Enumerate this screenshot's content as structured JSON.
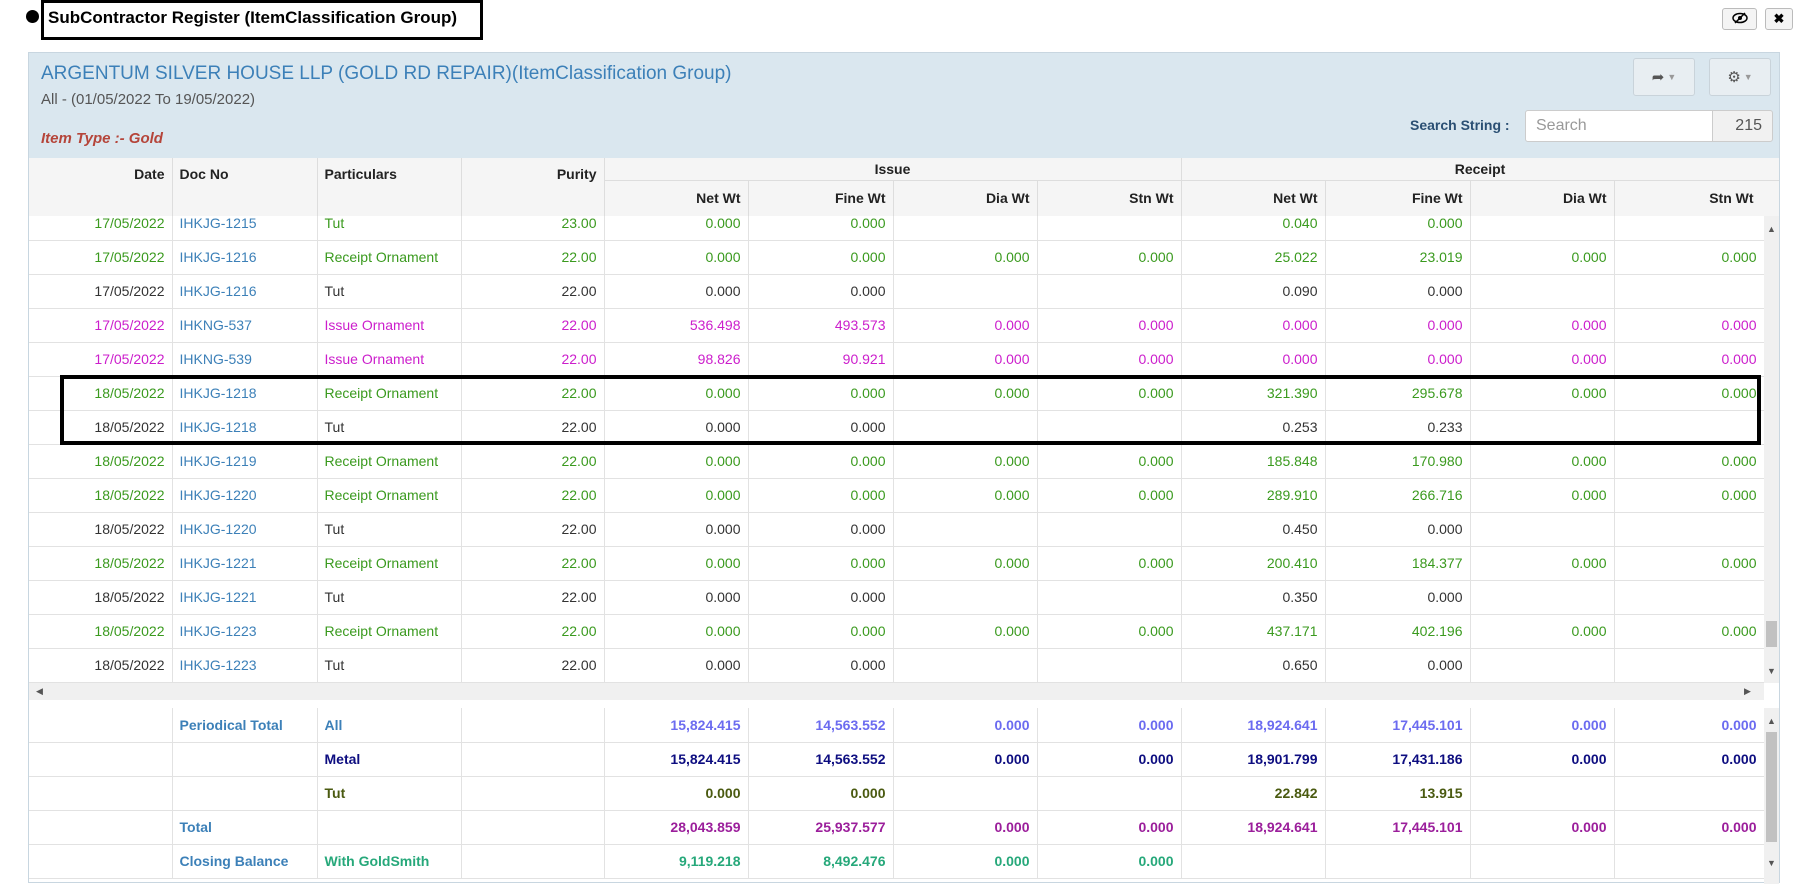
{
  "window": {
    "title": "SubContractor Register (ItemClassification Group)",
    "icons": [
      "eye-slash-icon",
      "close-icon"
    ]
  },
  "header": {
    "company": "ARGENTUM SILVER HOUSE LLP (GOLD RD REPAIR)(ItemClassification Group)",
    "period": "All - (01/05/2022 To 19/05/2022)",
    "item_type": "Item Type :- Gold",
    "search_label": "Search String :",
    "search_placeholder": "Search",
    "search_value": "",
    "count": "215"
  },
  "columns": {
    "date": "Date",
    "doc_no": "Doc No",
    "particulars": "Particulars",
    "purity": "Purity",
    "issue_group": "Issue",
    "receipt_group": "Receipt",
    "net_wt": "Net Wt",
    "fine_wt": "Fine Wt",
    "dia_wt": "Dia Wt",
    "stn_wt": "Stn Wt"
  },
  "rows": [
    {
      "date": "17/05/2022",
      "doc": "IHKJG-1215",
      "part": "Tut",
      "purity": "23.00",
      "i_net": "0.000",
      "i_fine": "0.000",
      "i_dia": "",
      "i_stn": "",
      "r_net": "0.040",
      "r_fine": "0.000",
      "r_dia": "",
      "r_stn": "",
      "color": "green"
    },
    {
      "date": "17/05/2022",
      "doc": "IHKJG-1216",
      "part": "Receipt Ornament",
      "purity": "22.00",
      "i_net": "0.000",
      "i_fine": "0.000",
      "i_dia": "0.000",
      "i_stn": "0.000",
      "r_net": "25.022",
      "r_fine": "23.019",
      "r_dia": "0.000",
      "r_stn": "0.000",
      "color": "green"
    },
    {
      "date": "17/05/2022",
      "doc": "IHKJG-1216",
      "part": "Tut",
      "purity": "22.00",
      "i_net": "0.000",
      "i_fine": "0.000",
      "i_dia": "",
      "i_stn": "",
      "r_net": "0.090",
      "r_fine": "0.000",
      "r_dia": "",
      "r_stn": "",
      "color": "dark"
    },
    {
      "date": "17/05/2022",
      "doc": "IHKNG-537",
      "part": "Issue Ornament",
      "purity": "22.00",
      "i_net": "536.498",
      "i_fine": "493.573",
      "i_dia": "0.000",
      "i_stn": "0.000",
      "r_net": "0.000",
      "r_fine": "0.000",
      "r_dia": "0.000",
      "r_stn": "0.000",
      "color": "magenta"
    },
    {
      "date": "17/05/2022",
      "doc": "IHKNG-539",
      "part": "Issue Ornament",
      "purity": "22.00",
      "i_net": "98.826",
      "i_fine": "90.921",
      "i_dia": "0.000",
      "i_stn": "0.000",
      "r_net": "0.000",
      "r_fine": "0.000",
      "r_dia": "0.000",
      "r_stn": "0.000",
      "color": "magenta"
    },
    {
      "date": "18/05/2022",
      "doc": "IHKJG-1218",
      "part": "Receipt Ornament",
      "purity": "22.00",
      "i_net": "0.000",
      "i_fine": "0.000",
      "i_dia": "0.000",
      "i_stn": "0.000",
      "r_net": "321.390",
      "r_fine": "295.678",
      "r_dia": "0.000",
      "r_stn": "0.000",
      "color": "green"
    },
    {
      "date": "18/05/2022",
      "doc": "IHKJG-1218",
      "part": "Tut",
      "purity": "22.00",
      "i_net": "0.000",
      "i_fine": "0.000",
      "i_dia": "",
      "i_stn": "",
      "r_net": "0.253",
      "r_fine": "0.233",
      "r_dia": "",
      "r_stn": "",
      "color": "dark"
    },
    {
      "date": "18/05/2022",
      "doc": "IHKJG-1219",
      "part": "Receipt Ornament",
      "purity": "22.00",
      "i_net": "0.000",
      "i_fine": "0.000",
      "i_dia": "0.000",
      "i_stn": "0.000",
      "r_net": "185.848",
      "r_fine": "170.980",
      "r_dia": "0.000",
      "r_stn": "0.000",
      "color": "green"
    },
    {
      "date": "18/05/2022",
      "doc": "IHKJG-1220",
      "part": "Receipt Ornament",
      "purity": "22.00",
      "i_net": "0.000",
      "i_fine": "0.000",
      "i_dia": "0.000",
      "i_stn": "0.000",
      "r_net": "289.910",
      "r_fine": "266.716",
      "r_dia": "0.000",
      "r_stn": "0.000",
      "color": "green"
    },
    {
      "date": "18/05/2022",
      "doc": "IHKJG-1220",
      "part": "Tut",
      "purity": "22.00",
      "i_net": "0.000",
      "i_fine": "0.000",
      "i_dia": "",
      "i_stn": "",
      "r_net": "0.450",
      "r_fine": "0.000",
      "r_dia": "",
      "r_stn": "",
      "color": "dark"
    },
    {
      "date": "18/05/2022",
      "doc": "IHKJG-1221",
      "part": "Receipt Ornament",
      "purity": "22.00",
      "i_net": "0.000",
      "i_fine": "0.000",
      "i_dia": "0.000",
      "i_stn": "0.000",
      "r_net": "200.410",
      "r_fine": "184.377",
      "r_dia": "0.000",
      "r_stn": "0.000",
      "color": "green"
    },
    {
      "date": "18/05/2022",
      "doc": "IHKJG-1221",
      "part": "Tut",
      "purity": "22.00",
      "i_net": "0.000",
      "i_fine": "0.000",
      "i_dia": "",
      "i_stn": "",
      "r_net": "0.350",
      "r_fine": "0.000",
      "r_dia": "",
      "r_stn": "",
      "color": "dark"
    },
    {
      "date": "18/05/2022",
      "doc": "IHKJG-1223",
      "part": "Receipt Ornament",
      "purity": "22.00",
      "i_net": "0.000",
      "i_fine": "0.000",
      "i_dia": "0.000",
      "i_stn": "0.000",
      "r_net": "437.171",
      "r_fine": "402.196",
      "r_dia": "0.000",
      "r_stn": "0.000",
      "color": "green"
    },
    {
      "date": "18/05/2022",
      "doc": "IHKJG-1223",
      "part": "Tut",
      "purity": "22.00",
      "i_net": "0.000",
      "i_fine": "0.000",
      "i_dia": "",
      "i_stn": "",
      "r_net": "0.650",
      "r_fine": "0.000",
      "r_dia": "",
      "r_stn": "",
      "color": "dark"
    }
  ],
  "totals": [
    {
      "label": "Periodical Total",
      "sub": "All",
      "i_net": "15,824.415",
      "i_fine": "14,563.552",
      "i_dia": "0.000",
      "i_stn": "0.000",
      "r_net": "18,924.641",
      "r_fine": "17,445.101",
      "r_dia": "0.000",
      "r_stn": "0.000",
      "color": "c-light",
      "label_color": "c-blue",
      "sub_color": "c-blue"
    },
    {
      "label": "",
      "sub": "Metal",
      "i_net": "15,824.415",
      "i_fine": "14,563.552",
      "i_dia": "0.000",
      "i_stn": "0.000",
      "r_net": "18,901.799",
      "r_fine": "17,431.186",
      "r_dia": "0.000",
      "r_stn": "0.000",
      "color": "c-navy",
      "label_color": "c-blue",
      "sub_color": "c-navy"
    },
    {
      "label": "",
      "sub": "Tut",
      "i_net": "0.000",
      "i_fine": "0.000",
      "i_dia": "",
      "i_stn": "",
      "r_net": "22.842",
      "r_fine": "13.915",
      "r_dia": "",
      "r_stn": "",
      "color": "c-olive",
      "label_color": "c-blue",
      "sub_color": "c-olive"
    },
    {
      "label": "Total",
      "sub": "",
      "i_net": "28,043.859",
      "i_fine": "25,937.577",
      "i_dia": "0.000",
      "i_stn": "0.000",
      "r_net": "18,924.641",
      "r_fine": "17,445.101",
      "r_dia": "0.000",
      "r_stn": "0.000",
      "color": "c-purple",
      "label_color": "c-blue",
      "sub_color": "c-purple"
    },
    {
      "label": "Closing Balance",
      "sub": "With GoldSmith",
      "i_net": "9,119.218",
      "i_fine": "8,492.476",
      "i_dia": "0.000",
      "i_stn": "0.000",
      "r_net": "",
      "r_fine": "",
      "r_dia": "",
      "r_stn": "",
      "color": "c-teal",
      "label_color": "c-blue",
      "sub_color": "c-teal"
    }
  ]
}
